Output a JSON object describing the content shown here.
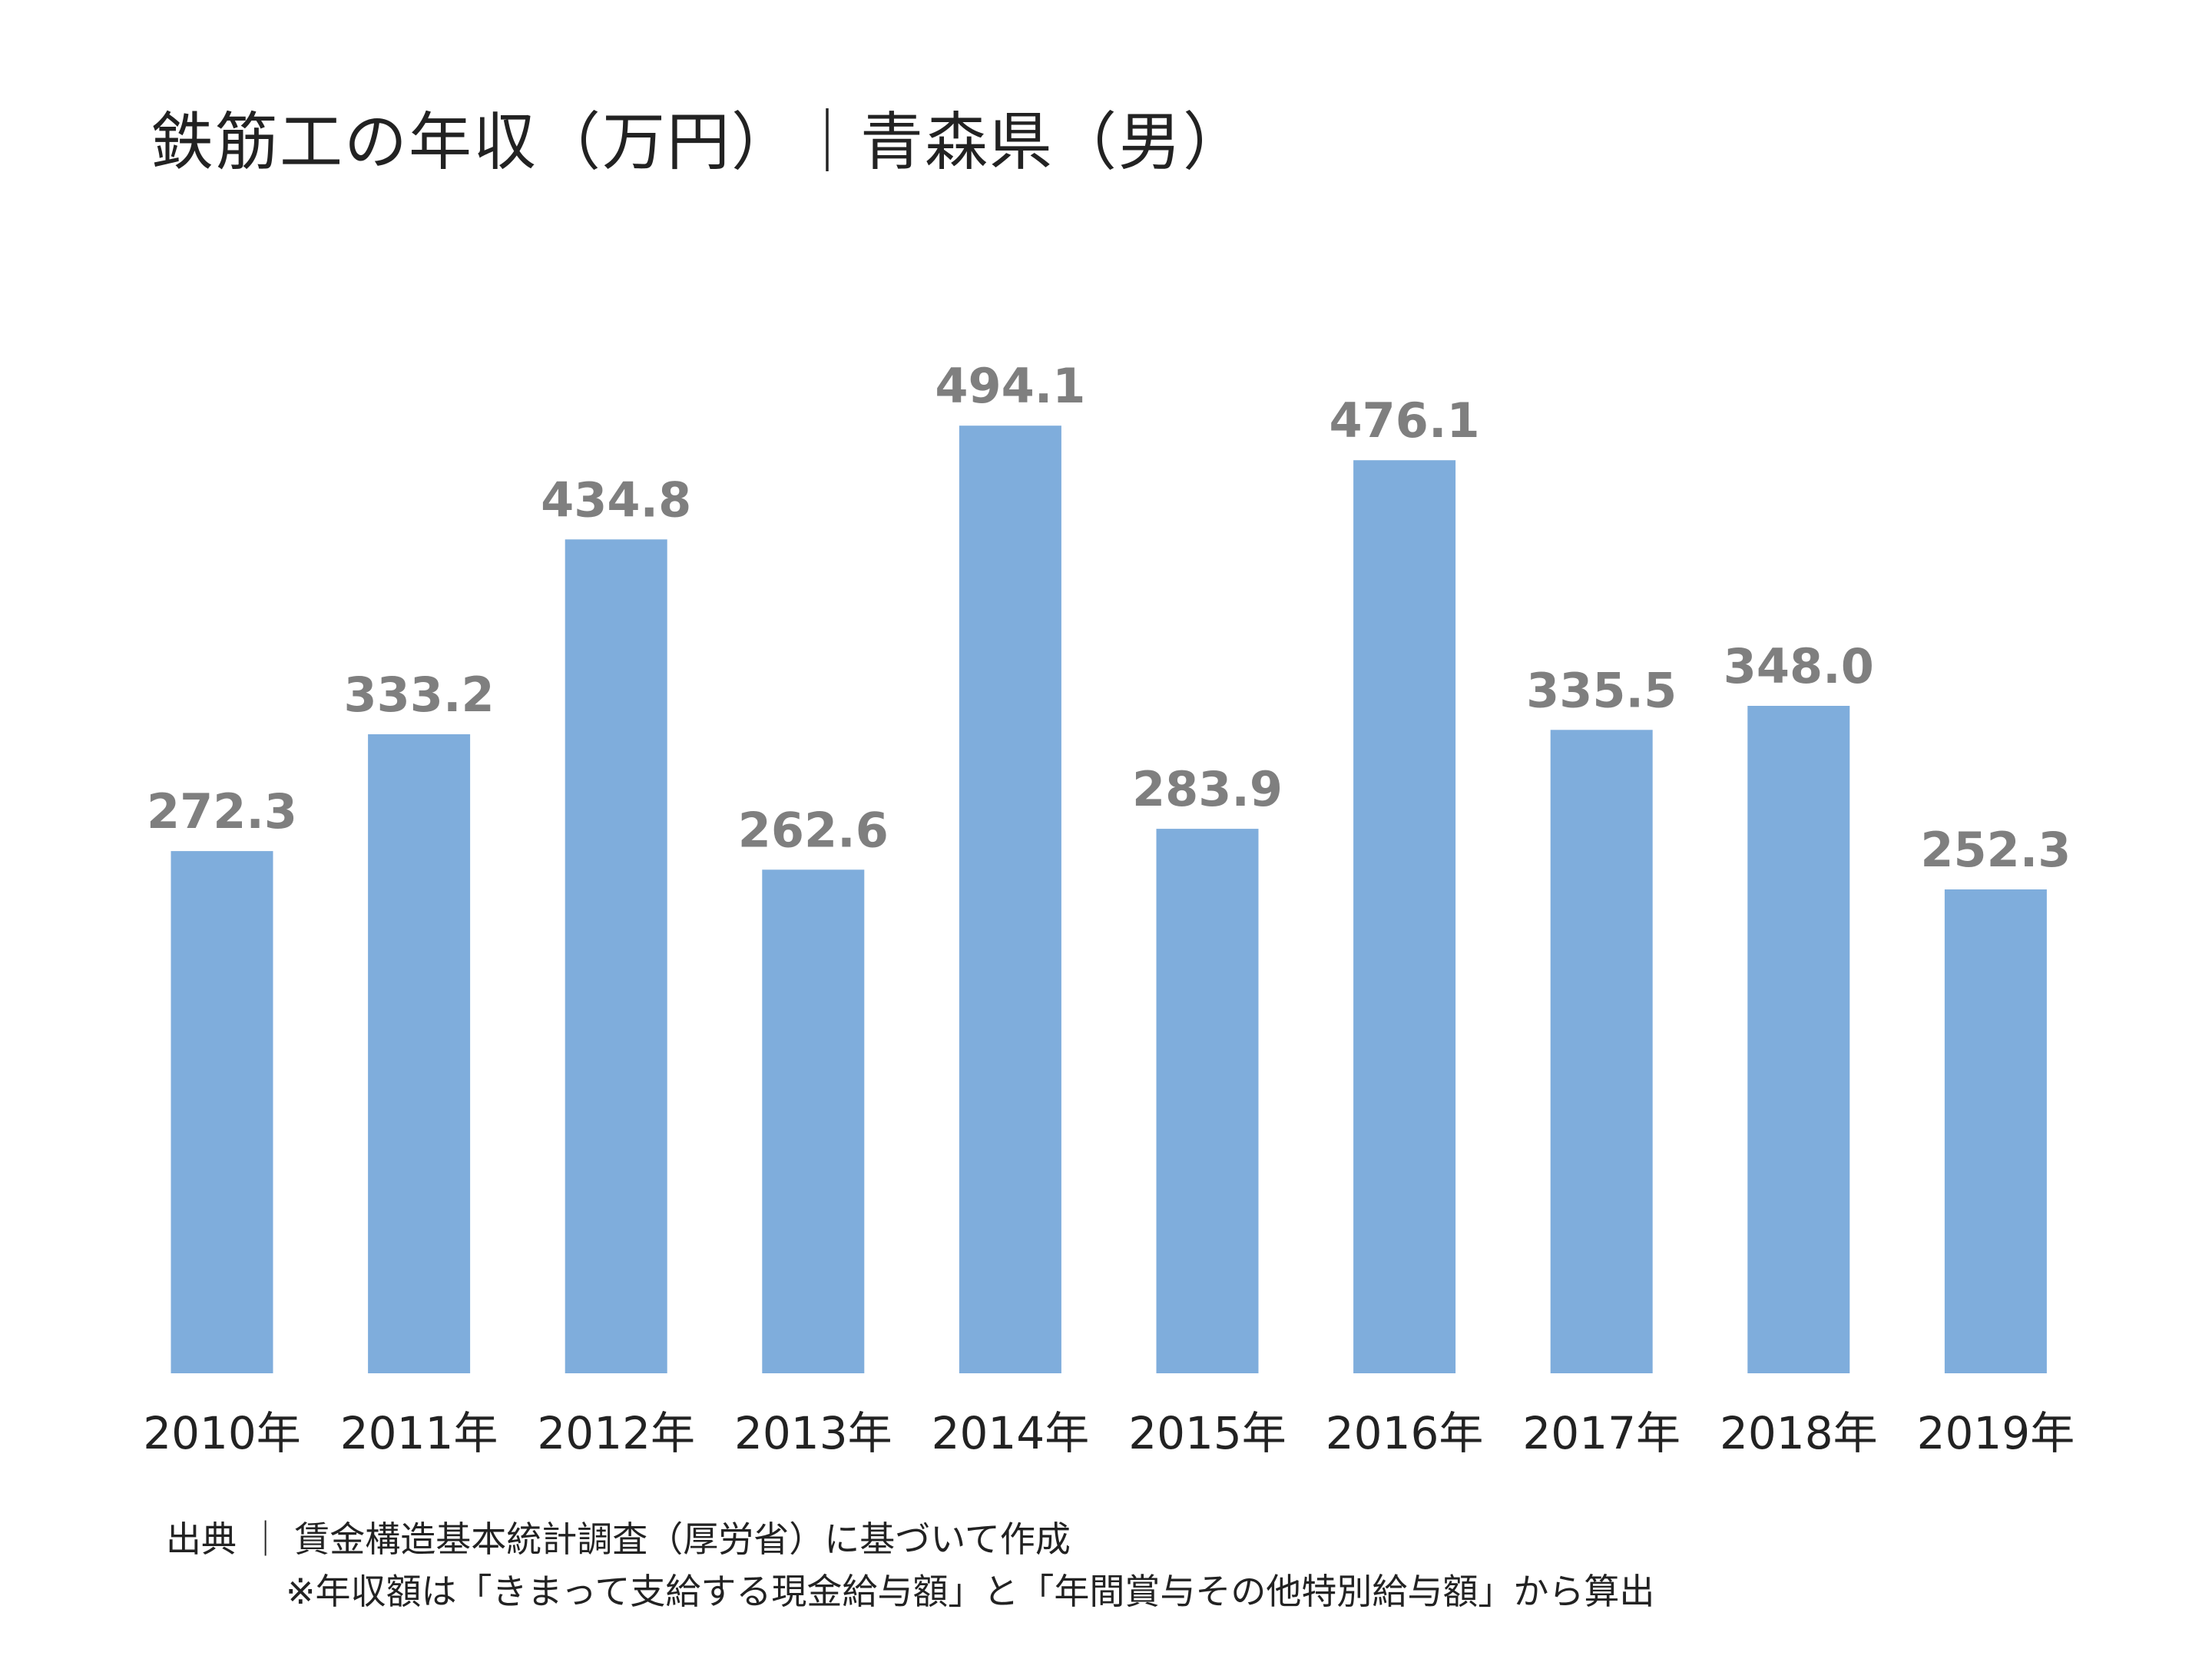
{
  "chart_data": {
    "type": "bar",
    "title": "鉄筋工の年収（万円）｜青森県（男）",
    "categories": [
      "2010年",
      "2011年",
      "2012年",
      "2013年",
      "2014年",
      "2015年",
      "2016年",
      "2017年",
      "2018年",
      "2019年"
    ],
    "values": [
      272.3,
      333.2,
      434.8,
      262.6,
      494.1,
      283.9,
      476.1,
      335.5,
      348.0,
      252.3
    ],
    "value_labels": [
      "272.3",
      "333.2",
      "434.8",
      "262.6",
      "494.1",
      "283.9",
      "476.1",
      "335.5",
      "348.0",
      "252.3"
    ],
    "xlabel": "",
    "ylabel": "",
    "ylim": [
      0,
      500
    ],
    "grid": false,
    "legend": "none",
    "bar_color": "#7faddc",
    "label_color": "#7f7f7f"
  },
  "footer": {
    "source": "出典 ｜ 賃金構造基本統計調査（厚労省）に基づいて作成",
    "note": "※年収額は「きまって支給する現金給与額」と「年間賞与その他特別給与額」から算出"
  }
}
